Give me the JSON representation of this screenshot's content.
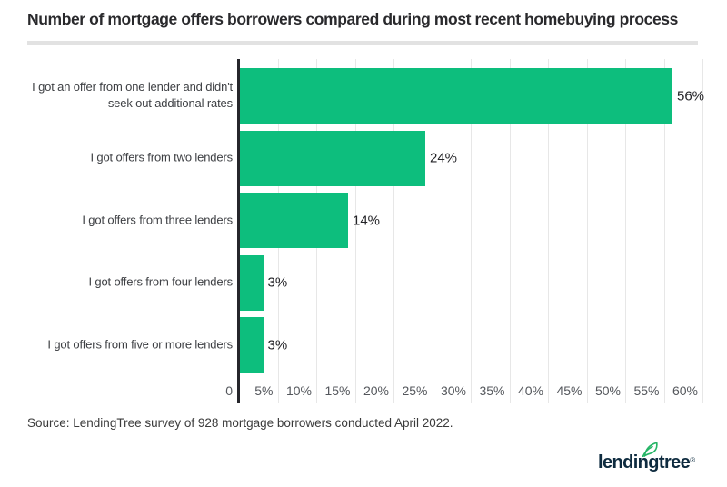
{
  "title": "Number of mortgage offers borrowers compared during most recent homebuying process",
  "source": "Source: LendingTree survey of 928 mortgage borrowers conducted April 2022.",
  "logo": {
    "text": "lendingtree",
    "registered": "®",
    "icon": "leaf-icon"
  },
  "colors": {
    "bar_green": "#0dbe7d",
    "leaf_green": "#27b567",
    "logo_navy": "#0e2b3f",
    "axis": "#26262b",
    "gridline": "#e7e7e7",
    "title_text": "#29292c",
    "category_text": "#3e4044",
    "value_text": "#232327",
    "tick_text": "#54575c"
  },
  "chart_data": {
    "type": "bar",
    "orientation": "horizontal",
    "title": "Number of mortgage offers borrowers compared during most recent homebuying process",
    "categories": [
      "I got an offer from one lender and didn't seek out additional rates",
      "I got offers from two lenders",
      "I got offers from three lenders",
      "I got offers from four lenders",
      "I got offers from five or more lenders"
    ],
    "categories_wrapped": [
      [
        "I got an offer from one lender and didn't",
        "seek out additional rates"
      ],
      [
        "I got offers from two lenders"
      ],
      [
        "I got offers from three lenders"
      ],
      [
        "I got offers from four lenders"
      ],
      [
        "I got offers from five or more lenders"
      ]
    ],
    "values": [
      56,
      24,
      14,
      3,
      3
    ],
    "value_labels": [
      "56%",
      "24%",
      "14%",
      "3%",
      "3%"
    ],
    "xlabel": "",
    "ylabel": "",
    "xlim": [
      0,
      60
    ],
    "x_tick_values": [
      0,
      5,
      10,
      15,
      20,
      25,
      30,
      35,
      40,
      45,
      50,
      55,
      60
    ],
    "x_tick_labels": [
      "0",
      "5%",
      "10%",
      "15%",
      "20%",
      "25%",
      "30%",
      "35%",
      "40%",
      "45%",
      "50%",
      "55%",
      "60%"
    ],
    "grid": true,
    "legend": false
  }
}
